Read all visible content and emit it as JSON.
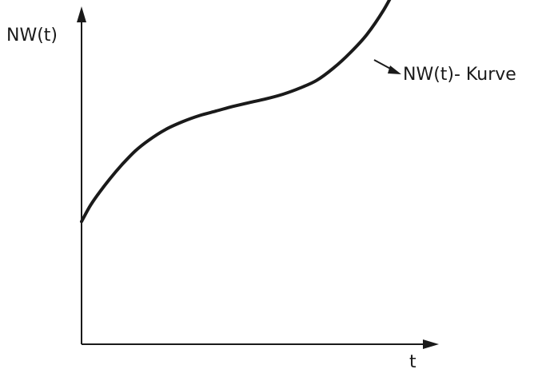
{
  "chart_data": {
    "type": "line",
    "title": "",
    "xlabel": "t",
    "ylabel": "NW(t)",
    "xlim": [
      0,
      10
    ],
    "ylim": [
      0,
      10
    ],
    "grid": false,
    "legend": "none",
    "annotations": [
      {
        "text": "NW(t)- Kurve",
        "points_to": "curve-upper-right"
      }
    ],
    "series": [
      {
        "values_x": [
          0,
          0.25,
          0.5,
          0.85,
          1.2,
          1.6,
          2.0,
          2.5,
          3.0,
          3.5,
          4.0,
          4.5,
          5.0,
          5.5,
          6.0,
          6.5,
          7.0,
          7.5,
          8.0,
          8.5,
          9.0,
          9.4
        ],
        "values_y": [
          4.0,
          4.5,
          4.9,
          5.4,
          5.85,
          6.3,
          6.65,
          7.0,
          7.25,
          7.45,
          7.6,
          7.75,
          7.88,
          8.0,
          8.15,
          8.35,
          8.6,
          9.0,
          9.5,
          10.1,
          10.9,
          11.7
        ]
      }
    ]
  }
}
